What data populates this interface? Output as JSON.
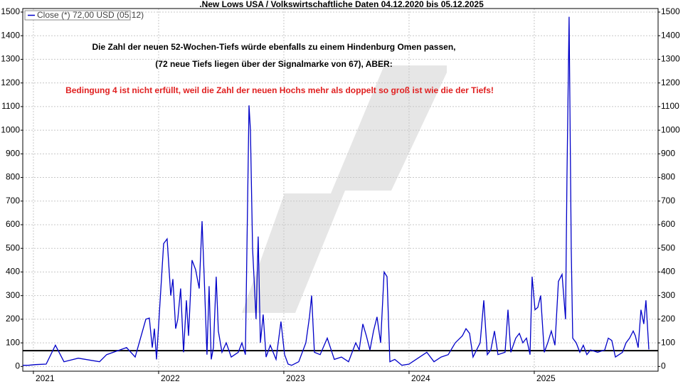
{
  "chart_data": {
    "type": "line",
    "title": ".New Lows USA / Volkswirtschaftliche Daten 04.12.2020 bis 05.12.2025",
    "annotations": [
      {
        "text": "Die Zahl der neuen 52-Wochen-Tiefs würde ebenfalls zu einem Hindenburg Omen passen,",
        "color": "#000000"
      },
      {
        "text": "(72 neue Tiefs liegen über der Signalmarke von 67), ABER:",
        "color": "#000000"
      },
      {
        "text": "Bedingung 4 ist nicht erfüllt, weil die Zahl der neuen Hochs mehr als doppelt so groß ist wie die der Tiefs!",
        "color": "#e02020"
      }
    ],
    "signal_line": 67,
    "x": [
      2020.915,
      2020.96,
      2021.017,
      2021.102,
      2021.176,
      2021.244,
      2021.358,
      2021.528,
      2021.585,
      2021.744,
      2021.813,
      2021.898,
      2021.926,
      2021.949,
      2021.966,
      2021.983,
      2022.04,
      2022.068,
      2022.097,
      2022.114,
      2022.136,
      2022.153,
      2022.176,
      2022.199,
      2022.222,
      2022.239,
      2022.267,
      2022.295,
      2022.324,
      2022.347,
      2022.364,
      2022.386,
      2022.403,
      2022.42,
      2022.438,
      2022.46,
      2022.477,
      2022.506,
      2022.54,
      2022.58,
      2022.636,
      2022.665,
      2022.693,
      2022.722,
      2022.733,
      2022.75,
      2022.778,
      2022.795,
      2022.813,
      2022.835,
      2022.858,
      2022.892,
      2022.938,
      2022.977,
      2023.006,
      2023.034,
      2023.063,
      2023.119,
      2023.176,
      2023.205,
      2023.222,
      2023.244,
      2023.29,
      2023.347,
      2023.403,
      2023.46,
      2023.517,
      2023.574,
      2023.602,
      2023.631,
      2023.659,
      2023.688,
      2023.716,
      2023.744,
      2023.773,
      2023.801,
      2023.824,
      2023.847,
      2023.886,
      2023.943,
      2024.0,
      2024.085,
      2024.142,
      2024.199,
      2024.256,
      2024.313,
      2024.369,
      2024.426,
      2024.455,
      2024.483,
      2024.511,
      2024.568,
      2024.597,
      2024.625,
      2024.653,
      2024.682,
      2024.71,
      2024.767,
      2024.79,
      2024.813,
      2024.852,
      2024.881,
      2024.909,
      2024.938,
      2024.966,
      2024.983,
      2025.006,
      2025.028,
      2025.051,
      2025.08,
      2025.108,
      2025.136,
      2025.165,
      2025.193,
      2025.222,
      2025.25,
      2025.261,
      2025.278,
      2025.295,
      2025.307,
      2025.335,
      2025.364,
      2025.392,
      2025.42,
      2025.449,
      2025.506,
      2025.563,
      2025.591,
      2025.619,
      2025.648,
      2025.705,
      2025.733,
      2025.761,
      2025.79,
      2025.807,
      2025.83,
      2025.852,
      2025.875,
      2025.892,
      2025.915
    ],
    "series": [
      {
        "name": "Close (*) 72,00 USD (05.12)",
        "color": "#0000c8",
        "values": [
          5,
          5,
          8,
          10,
          90,
          20,
          35,
          20,
          50,
          80,
          40,
          200,
          205,
          80,
          160,
          30,
          520,
          540,
          300,
          370,
          160,
          200,
          330,
          60,
          280,
          130,
          450,
          410,
          330,
          615,
          380,
          50,
          340,
          30,
          80,
          380,
          150,
          60,
          100,
          40,
          60,
          100,
          50,
          1105,
          1000,
          500,
          200,
          550,
          100,
          220,
          40,
          90,
          30,
          190,
          50,
          10,
          5,
          20,
          100,
          210,
          300,
          60,
          50,
          120,
          30,
          40,
          20,
          100,
          70,
          180,
          130,
          70,
          150,
          210,
          100,
          400,
          380,
          20,
          30,
          5,
          10,
          40,
          60,
          20,
          40,
          50,
          100,
          130,
          160,
          140,
          40,
          100,
          280,
          50,
          70,
          150,
          50,
          60,
          240,
          60,
          120,
          140,
          100,
          120,
          50,
          380,
          240,
          250,
          300,
          60,
          100,
          150,
          90,
          360,
          390,
          200,
          800,
          1480,
          500,
          120,
          100,
          60,
          90,
          50,
          70,
          60,
          70,
          120,
          110,
          40,
          60,
          100,
          120,
          150,
          130,
          80,
          240,
          180,
          280,
          72
        ]
      }
    ],
    "xlim": [
      2020.915,
      2025.989
    ],
    "xticks": [
      2021,
      2022,
      2023,
      2024,
      2025
    ],
    "ylim": [
      -20,
      1515
    ],
    "yticks": [
      0,
      100,
      200,
      300,
      400,
      500,
      600,
      700,
      800,
      900,
      1000,
      1100,
      1200,
      1300,
      1400,
      1500
    ],
    "y2lim": [
      -20,
      1515
    ],
    "y2ticks": [
      0,
      100,
      200,
      300,
      400,
      500,
      600,
      700,
      800,
      900,
      1000,
      1100,
      1200,
      1300,
      1400,
      1500
    ],
    "grid": true,
    "legend": "upper left"
  }
}
